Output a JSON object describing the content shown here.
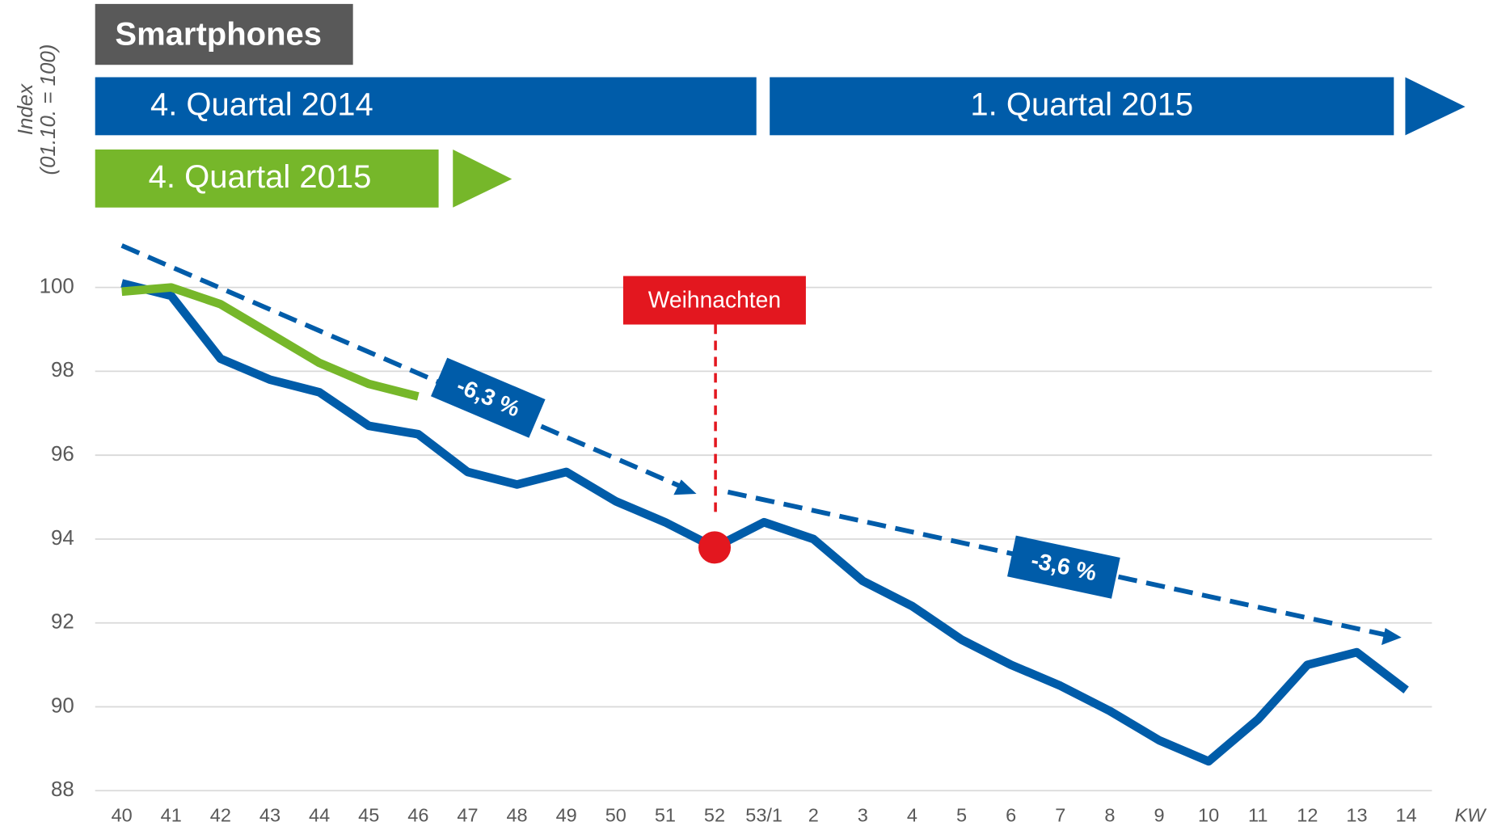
{
  "chart_data": {
    "type": "line",
    "title": "Smartphones",
    "y_label": "Index",
    "y_label_sub": "(01.10. = 100)",
    "x_label": "KW",
    "periods": [
      "4. Quartal 2014",
      "1. Quartal 2015",
      "4. Quartal 2015"
    ],
    "event": "Weihnachten",
    "trend_labels": [
      "-6,3 %",
      "-3,6 %"
    ],
    "categories": [
      "40",
      "41",
      "42",
      "43",
      "44",
      "45",
      "46",
      "47",
      "48",
      "49",
      "50",
      "51",
      "52",
      "53/1",
      "2",
      "3",
      "4",
      "5",
      "6",
      "7",
      "8",
      "9",
      "10",
      "11",
      "12",
      "13",
      "14"
    ],
    "series": [
      {
        "color": "#005ca9",
        "values": [
          100.1,
          99.8,
          98.3,
          97.8,
          97.5,
          96.7,
          96.5,
          95.6,
          95.3,
          95.6,
          94.9,
          94.4,
          93.8,
          94.4,
          94.0,
          93.0,
          92.4,
          91.6,
          91.0,
          90.5,
          89.9,
          89.2,
          88.7,
          89.7,
          91.0,
          91.3,
          90.4
        ]
      },
      {
        "color": "#76b72a",
        "values": [
          99.9,
          100.0,
          99.6,
          98.9,
          98.2,
          97.7,
          97.4,
          null,
          null,
          null,
          null,
          null,
          null,
          null,
          null,
          null,
          null,
          null,
          null,
          null,
          null,
          null,
          null,
          null,
          null,
          null,
          null
        ]
      }
    ],
    "ylim": [
      88,
      100
    ],
    "yticks": [
      88,
      90,
      92,
      94,
      96,
      98,
      100
    ],
    "grid": true
  }
}
